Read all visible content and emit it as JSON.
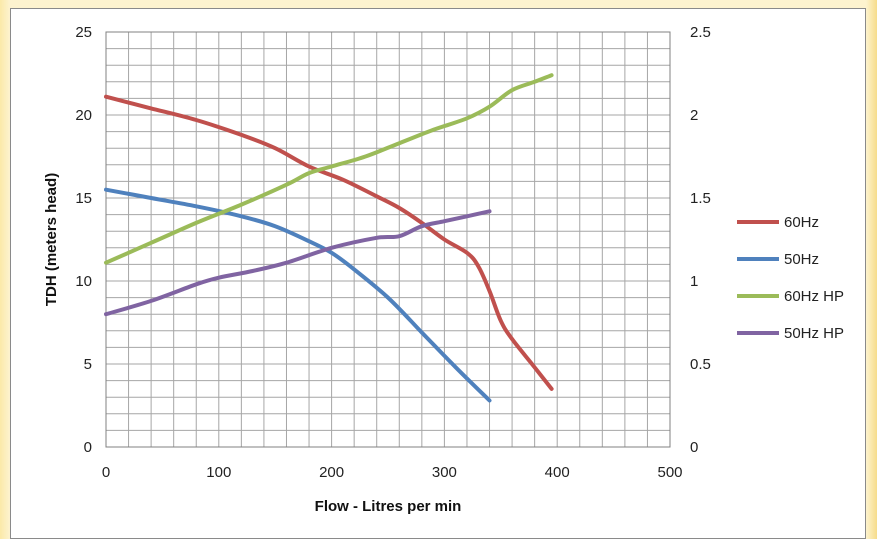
{
  "chart_data": {
    "type": "line",
    "title": "",
    "xlabel": "Flow - Litres per min",
    "ylabel": "TDH (meters head)",
    "y2label": "",
    "xlim": [
      0,
      500
    ],
    "ylim": [
      0,
      25
    ],
    "y2lim": [
      0,
      2.5
    ],
    "xticks": [
      "0",
      "100",
      "200",
      "300",
      "400",
      "500"
    ],
    "yticks": [
      "0",
      "5",
      "10",
      "15",
      "20",
      "25"
    ],
    "y2ticks": [
      "0",
      "0.5",
      "1",
      "1.5",
      "2",
      "2.5"
    ],
    "grid": true,
    "legend_position": "right",
    "series": [
      {
        "name": "60Hz",
        "axis": "left",
        "color": "#c0504d",
        "x": [
          0,
          40,
          80,
          120,
          150,
          180,
          210,
          240,
          260,
          280,
          300,
          320,
          330,
          340,
          350,
          360,
          380,
          395
        ],
        "y": [
          21.1,
          20.4,
          19.7,
          18.8,
          18.0,
          16.9,
          16.1,
          15.1,
          14.4,
          13.5,
          12.5,
          11.7,
          10.9,
          9.4,
          7.6,
          6.5,
          4.8,
          3.5
        ]
      },
      {
        "name": "50Hz",
        "axis": "left",
        "color": "#4f81bd",
        "x": [
          0,
          40,
          80,
          120,
          150,
          180,
          200,
          220,
          250,
          280,
          310,
          340
        ],
        "y": [
          15.5,
          15.0,
          14.5,
          13.9,
          13.3,
          12.4,
          11.7,
          10.7,
          9.0,
          6.9,
          4.8,
          2.8
        ]
      },
      {
        "name": "60Hz HP",
        "axis": "right",
        "color": "#9bbb59",
        "x": [
          0,
          40,
          80,
          120,
          160,
          180,
          200,
          230,
          260,
          290,
          320,
          340,
          360,
          380,
          395
        ],
        "y": [
          1.11,
          1.23,
          1.35,
          1.46,
          1.58,
          1.65,
          1.69,
          1.75,
          1.83,
          1.91,
          1.98,
          2.05,
          2.15,
          2.2,
          2.24
        ]
      },
      {
        "name": "50Hz HP",
        "axis": "right",
        "color": "#8064a2",
        "x": [
          0,
          40,
          80,
          100,
          130,
          160,
          200,
          240,
          260,
          280,
          300,
          320,
          340
        ],
        "y": [
          0.8,
          0.88,
          0.98,
          1.02,
          1.06,
          1.11,
          1.2,
          1.26,
          1.27,
          1.33,
          1.36,
          1.39,
          1.42
        ]
      }
    ]
  }
}
